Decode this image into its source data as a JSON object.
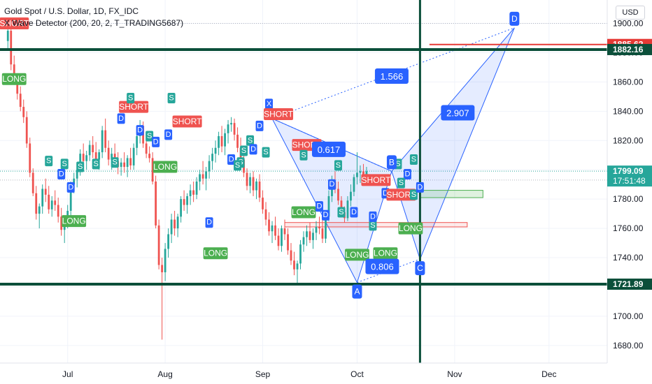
{
  "header": {
    "symbol_line": "Gold Spot / U.S. Dollar, 1D, FX_IDC",
    "indicator_line": "X Wave Detector (200, 20, 2, T_TRADING5687)",
    "currency_button": "USD"
  },
  "colors": {
    "up": "#26a69a",
    "down": "#ef5350",
    "tag_short": "#ef5350",
    "tag_long": "#4caf50",
    "tag_d": "#2962ff",
    "tag_s": "#26a69a",
    "level": "#0b4f3a",
    "pattern": "#2962ff",
    "resistance": "#e53935"
  },
  "chart_data": {
    "type": "candlestick",
    "ylim": [
      1668,
      1916
    ],
    "y_ticks": [
      1680,
      1700,
      1720,
      1740,
      1760,
      1780,
      1800,
      1820,
      1840,
      1860,
      1880,
      1900
    ],
    "y_tick_labels": [
      "1680.00",
      "1700.00",
      "1720.00",
      "1740.00",
      "1760.00",
      "1780.00",
      "1800.00",
      "1820.00",
      "1840.00",
      "1860.00",
      "1880.00",
      "1900.00"
    ],
    "x_labels": [
      {
        "label": "Jul",
        "day": 15
      },
      {
        "label": "Aug",
        "day": 46
      },
      {
        "label": "Sep",
        "day": 77
      },
      {
        "label": "Oct",
        "day": 107
      },
      {
        "label": "Nov",
        "day": 138
      },
      {
        "label": "Dec",
        "day": 168
      }
    ],
    "first_visible_day": -6.5,
    "last_visible_day": 186.5,
    "price_labels": [
      {
        "value": "1885.62",
        "y": 1885.62,
        "color": "#e53935"
      },
      {
        "value": "1882.16",
        "y": 1882.16,
        "color": "#0b4f3a"
      },
      {
        "value": "1799.09",
        "y": 1799.09,
        "color": "#26a69a",
        "sub": "17:51:48"
      },
      {
        "value": "1721.89",
        "y": 1721.89,
        "color": "#0b4f3a"
      }
    ],
    "horizontal_levels": [
      1882.16,
      1721.89
    ],
    "resistance_line": {
      "y": 1885.62,
      "from_day": 130,
      "to_day": 186
    },
    "vertical_marker_day": 127,
    "boxes": [
      {
        "name": "green-box",
        "from_day": 127,
        "to_day": 147,
        "low": 1781,
        "high": 1786,
        "color": "#4caf50"
      },
      {
        "name": "red-box",
        "from_day": 84,
        "to_day": 142,
        "low": 1761,
        "high": 1764,
        "color": "#ef5350"
      }
    ],
    "pattern": {
      "X": {
        "day": 80,
        "price": 1835
      },
      "A": {
        "day": 107,
        "price": 1723
      },
      "B": {
        "day": 118,
        "price": 1799
      },
      "C": {
        "day": 127,
        "price": 1739
      },
      "D": {
        "day": 157,
        "price": 1897
      },
      "ratios": [
        {
          "text": "0.617",
          "day": 98,
          "price": 1814
        },
        {
          "text": "1.566",
          "day": 118,
          "price": 1864
        },
        {
          "text": "0.806",
          "day": 115,
          "price": 1734
        },
        {
          "text": "2.907",
          "day": 139,
          "price": 1839
        }
      ]
    },
    "candles": [
      [
        1888,
        1897,
        1882,
        1895
      ],
      [
        1895,
        1903,
        1868,
        1872
      ],
      [
        1872,
        1878,
        1858,
        1862
      ],
      [
        1862,
        1866,
        1848,
        1852
      ],
      [
        1852,
        1857,
        1840,
        1843
      ],
      [
        1843,
        1848,
        1832,
        1836
      ],
      [
        1836,
        1840,
        1815,
        1818
      ],
      [
        1818,
        1822,
        1795,
        1798
      ],
      [
        1798,
        1801,
        1782,
        1784
      ],
      [
        1784,
        1789,
        1766,
        1770
      ],
      [
        1770,
        1777,
        1760,
        1775
      ],
      [
        1775,
        1790,
        1770,
        1787
      ],
      [
        1787,
        1794,
        1778,
        1783
      ],
      [
        1783,
        1789,
        1770,
        1773
      ],
      [
        1773,
        1782,
        1768,
        1779
      ],
      [
        1779,
        1786,
        1772,
        1776
      ],
      [
        1776,
        1781,
        1764,
        1768
      ],
      [
        1768,
        1774,
        1755,
        1759
      ],
      [
        1759,
        1767,
        1750,
        1764
      ],
      [
        1764,
        1776,
        1760,
        1772
      ],
      [
        1772,
        1792,
        1768,
        1790
      ],
      [
        1790,
        1798,
        1784,
        1794
      ],
      [
        1794,
        1803,
        1788,
        1800
      ],
      [
        1800,
        1814,
        1796,
        1811
      ],
      [
        1811,
        1818,
        1803,
        1806
      ],
      [
        1806,
        1813,
        1800,
        1810
      ],
      [
        1810,
        1820,
        1806,
        1817
      ],
      [
        1817,
        1823,
        1808,
        1812
      ],
      [
        1812,
        1819,
        1804,
        1807
      ],
      [
        1807,
        1814,
        1800,
        1812
      ],
      [
        1812,
        1830,
        1808,
        1827
      ],
      [
        1827,
        1835,
        1812,
        1815
      ],
      [
        1815,
        1820,
        1803,
        1807
      ],
      [
        1807,
        1815,
        1800,
        1811
      ],
      [
        1811,
        1818,
        1802,
        1806
      ],
      [
        1806,
        1812,
        1797,
        1802
      ],
      [
        1802,
        1808,
        1796,
        1805
      ],
      [
        1805,
        1812,
        1798,
        1802
      ],
      [
        1802,
        1810,
        1795,
        1808
      ],
      [
        1808,
        1815,
        1800,
        1803
      ],
      [
        1803,
        1818,
        1800,
        1815
      ],
      [
        1815,
        1826,
        1810,
        1823
      ],
      [
        1823,
        1834,
        1818,
        1830
      ],
      [
        1830,
        1833,
        1815,
        1818
      ],
      [
        1818,
        1823,
        1808,
        1811
      ],
      [
        1811,
        1816,
        1805,
        1808
      ],
      [
        1808,
        1812,
        1790,
        1792
      ],
      [
        1792,
        1796,
        1760,
        1762
      ],
      [
        1762,
        1766,
        1732,
        1735
      ],
      [
        1735,
        1740,
        1684,
        1730
      ],
      [
        1730,
        1750,
        1724,
        1746
      ],
      [
        1746,
        1760,
        1740,
        1756
      ],
      [
        1756,
        1770,
        1750,
        1766
      ],
      [
        1766,
        1772,
        1755,
        1760
      ],
      [
        1760,
        1770,
        1754,
        1768
      ],
      [
        1768,
        1782,
        1764,
        1780
      ],
      [
        1780,
        1786,
        1772,
        1776
      ],
      [
        1776,
        1784,
        1770,
        1782
      ],
      [
        1782,
        1790,
        1776,
        1786
      ],
      [
        1786,
        1792,
        1778,
        1783
      ],
      [
        1783,
        1795,
        1780,
        1792
      ],
      [
        1792,
        1800,
        1786,
        1797
      ],
      [
        1797,
        1806,
        1790,
        1794
      ],
      [
        1794,
        1802,
        1786,
        1799
      ],
      [
        1799,
        1810,
        1794,
        1806
      ],
      [
        1806,
        1815,
        1800,
        1811
      ],
      [
        1811,
        1820,
        1805,
        1815
      ],
      [
        1815,
        1826,
        1810,
        1823
      ],
      [
        1823,
        1830,
        1812,
        1816
      ],
      [
        1816,
        1828,
        1810,
        1825
      ],
      [
        1825,
        1834,
        1818,
        1831
      ],
      [
        1831,
        1836,
        1826,
        1832
      ],
      [
        1832,
        1835,
        1820,
        1824
      ],
      [
        1824,
        1829,
        1812,
        1815
      ],
      [
        1815,
        1822,
        1804,
        1807
      ],
      [
        1807,
        1812,
        1795,
        1798
      ],
      [
        1798,
        1801,
        1786,
        1789
      ],
      [
        1789,
        1798,
        1784,
        1795
      ],
      [
        1795,
        1799,
        1782,
        1786
      ],
      [
        1786,
        1794,
        1780,
        1792
      ],
      [
        1792,
        1797,
        1778,
        1781
      ],
      [
        1781,
        1786,
        1770,
        1773
      ],
      [
        1773,
        1778,
        1762,
        1766
      ],
      [
        1766,
        1771,
        1755,
        1758
      ],
      [
        1758,
        1765,
        1750,
        1762
      ],
      [
        1762,
        1768,
        1752,
        1755
      ],
      [
        1755,
        1760,
        1745,
        1748
      ],
      [
        1748,
        1762,
        1744,
        1760
      ],
      [
        1760,
        1766,
        1752,
        1756
      ],
      [
        1756,
        1760,
        1742,
        1745
      ],
      [
        1745,
        1750,
        1735,
        1738
      ],
      [
        1738,
        1744,
        1728,
        1732
      ],
      [
        1732,
        1738,
        1722,
        1736
      ],
      [
        1736,
        1752,
        1732,
        1749
      ],
      [
        1749,
        1758,
        1744,
        1754
      ],
      [
        1754,
        1762,
        1748,
        1758
      ],
      [
        1758,
        1764,
        1750,
        1752
      ],
      [
        1752,
        1760,
        1746,
        1757
      ],
      [
        1757,
        1765,
        1752,
        1761
      ],
      [
        1761,
        1768,
        1756,
        1760
      ],
      [
        1760,
        1766,
        1750,
        1753
      ],
      [
        1753,
        1770,
        1750,
        1768
      ],
      [
        1768,
        1786,
        1765,
        1782
      ],
      [
        1782,
        1796,
        1778,
        1792
      ],
      [
        1792,
        1799,
        1784,
        1787
      ],
      [
        1787,
        1792,
        1776,
        1779
      ],
      [
        1779,
        1782,
        1768,
        1771
      ],
      [
        1771,
        1775,
        1764,
        1767
      ],
      [
        1767,
        1782,
        1765,
        1779
      ],
      [
        1779,
        1790,
        1775,
        1785
      ],
      [
        1785,
        1797,
        1782,
        1795
      ],
      [
        1795,
        1812,
        1790,
        1798
      ],
      [
        1798,
        1803,
        1791,
        1799
      ],
      [
        1799,
        1804,
        1793,
        1796
      ],
      [
        1796,
        1802,
        1790,
        1799
      ]
    ],
    "candle_start_day": -4,
    "tags": [
      {
        "text": "SHORT",
        "kind": "short",
        "day": -2,
        "price": 1900
      },
      {
        "text": "LONG",
        "kind": "long",
        "day": -2,
        "price": 1862
      },
      {
        "text": "S",
        "kind": "s",
        "day": 9,
        "price": 1806
      },
      {
        "text": "S",
        "kind": "s",
        "day": 14,
        "price": 1804
      },
      {
        "text": "S",
        "kind": "s",
        "day": 19,
        "price": 1802
      },
      {
        "text": "D",
        "kind": "d",
        "day": 13,
        "price": 1797
      },
      {
        "text": "D",
        "kind": "d",
        "day": 16,
        "price": 1788
      },
      {
        "text": "LONG",
        "kind": "long",
        "day": 17,
        "price": 1765
      },
      {
        "text": "S",
        "kind": "s",
        "day": 24,
        "price": 1804
      },
      {
        "text": "S",
        "kind": "s",
        "day": 30,
        "price": 1805
      },
      {
        "text": "D",
        "kind": "d",
        "day": 32,
        "price": 1835
      },
      {
        "text": "SHORT",
        "kind": "short",
        "day": 36,
        "price": 1843
      },
      {
        "text": "S",
        "kind": "s",
        "day": 35,
        "price": 1849
      },
      {
        "text": "S",
        "kind": "s",
        "day": 48,
        "price": 1849
      },
      {
        "text": "D",
        "kind": "d",
        "day": 38,
        "price": 1827
      },
      {
        "text": "S",
        "kind": "s",
        "day": 41,
        "price": 1823
      },
      {
        "text": "D",
        "kind": "d",
        "day": 43,
        "price": 1819
      },
      {
        "text": "D",
        "kind": "d",
        "day": 47,
        "price": 1824
      },
      {
        "text": "SHORT",
        "kind": "short",
        "day": 53,
        "price": 1833
      },
      {
        "text": "LONG",
        "kind": "long",
        "day": 46,
        "price": 1802
      },
      {
        "text": "D",
        "kind": "d",
        "day": 60,
        "price": 1764
      },
      {
        "text": "LONG",
        "kind": "long",
        "day": 62,
        "price": 1743
      },
      {
        "text": "S",
        "kind": "s",
        "day": 73,
        "price": 1820
      },
      {
        "text": "D",
        "kind": "d",
        "day": 76,
        "price": 1830
      },
      {
        "text": "D",
        "kind": "d",
        "day": 74,
        "price": 1814
      },
      {
        "text": "S",
        "kind": "s",
        "day": 71,
        "price": 1813
      },
      {
        "text": "S",
        "kind": "s",
        "day": 70,
        "price": 1805
      },
      {
        "text": "D",
        "kind": "d",
        "day": 67,
        "price": 1807
      },
      {
        "text": "S",
        "kind": "s",
        "day": 78,
        "price": 1812
      },
      {
        "text": "S",
        "kind": "s",
        "day": 69,
        "price": 1803
      },
      {
        "text": "X",
        "kind": "d",
        "day": 79,
        "price": 1845
      },
      {
        "text": "SHORT",
        "kind": "short",
        "day": 82,
        "price": 1838
      },
      {
        "text": "SHORT",
        "kind": "short",
        "day": 91,
        "price": 1817
      },
      {
        "text": "S",
        "kind": "s",
        "day": 90,
        "price": 1810
      },
      {
        "text": "S",
        "kind": "s",
        "day": 101,
        "price": 1803
      },
      {
        "text": "D",
        "kind": "d",
        "day": 99,
        "price": 1790
      },
      {
        "text": "LONG",
        "kind": "long",
        "day": 90,
        "price": 1771
      },
      {
        "text": "D",
        "kind": "d",
        "day": 95,
        "price": 1775
      },
      {
        "text": "D",
        "kind": "d",
        "day": 97,
        "price": 1769
      },
      {
        "text": "S",
        "kind": "s",
        "day": 102,
        "price": 1771
      },
      {
        "text": "D",
        "kind": "d",
        "day": 106,
        "price": 1771
      },
      {
        "text": "LONG",
        "kind": "long",
        "day": 107,
        "price": 1742
      },
      {
        "text": "LONG",
        "kind": "long",
        "day": 116,
        "price": 1743
      },
      {
        "text": "S",
        "kind": "s",
        "day": 112,
        "price": 1762
      },
      {
        "text": "D",
        "kind": "d",
        "day": 112,
        "price": 1768
      },
      {
        "text": "D",
        "kind": "d",
        "day": 116,
        "price": 1784
      },
      {
        "text": "SHORT",
        "kind": "short",
        "day": 113,
        "price": 1793
      },
      {
        "text": "S",
        "kind": "s",
        "day": 120,
        "price": 1804
      },
      {
        "text": "D",
        "kind": "d",
        "day": 123,
        "price": 1797
      },
      {
        "text": "SHORT",
        "kind": "short",
        "day": 121,
        "price": 1783
      },
      {
        "text": "S",
        "kind": "s",
        "day": 125,
        "price": 1783
      },
      {
        "text": "LONG",
        "kind": "long",
        "day": 124,
        "price": 1760
      },
      {
        "text": "S",
        "kind": "s",
        "day": 121,
        "price": 1791
      },
      {
        "text": "S",
        "kind": "s",
        "day": 125,
        "price": 1807
      },
      {
        "text": "D",
        "kind": "d",
        "day": 127,
        "price": 1788
      }
    ]
  }
}
